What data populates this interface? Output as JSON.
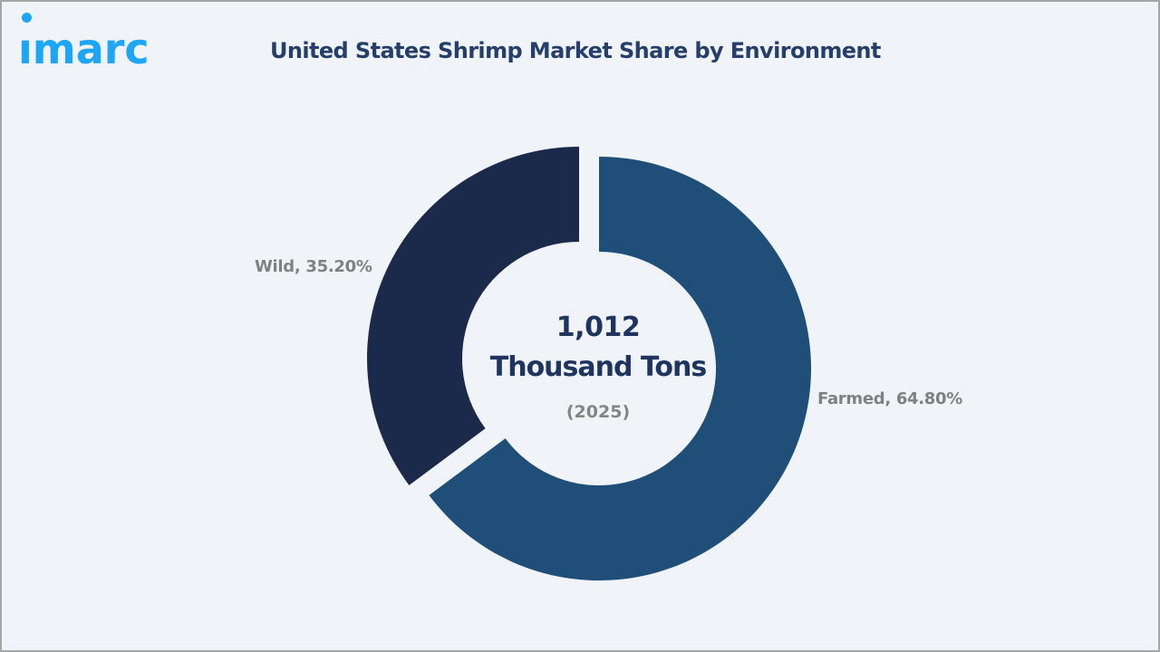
{
  "brand": {
    "logo_text": "ımarc",
    "logo_color": "#1ea6f6"
  },
  "header": {
    "title": "United States Shrimp Market Share by Environment"
  },
  "center": {
    "value": "1,012",
    "unit": "Thousand Tons",
    "year": "(2025)"
  },
  "labels": {
    "wild": "Wild, 35.20%",
    "farmed": "Farmed, 64.80%"
  },
  "chart_data": {
    "type": "pie",
    "subtype": "donut",
    "title": "United States Shrimp Market Share by Environment",
    "categories": [
      "Farmed",
      "Wild"
    ],
    "values": [
      64.8,
      35.2
    ],
    "unit": "%",
    "colors": [
      "#1f4e79",
      "#1b2a4a"
    ],
    "center_annotation": {
      "value": 1012,
      "label": "1,012 Thousand Tons",
      "year": "2025"
    },
    "legend": "none (inline data labels)",
    "data_labels": [
      "Farmed, 64.80%",
      "Wild, 35.20%"
    ]
  }
}
